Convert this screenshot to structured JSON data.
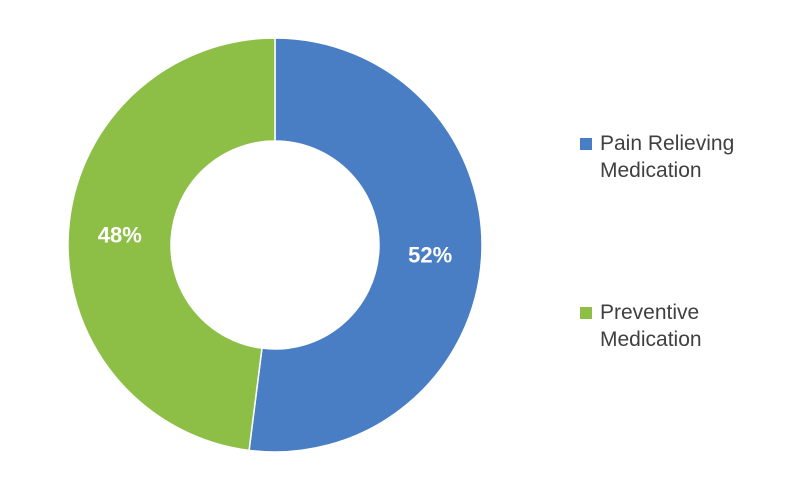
{
  "chart_data": {
    "type": "pie",
    "donut": true,
    "categories": [
      "Pain Relieving Medication",
      "Preventive Medication"
    ],
    "values": [
      52,
      48
    ],
    "labels": [
      "52%",
      "48%"
    ],
    "colors": [
      "#4a7ec4",
      "#8dbf47"
    ],
    "legend_position": "right",
    "title": "",
    "series": [
      {
        "name": "Pain Relieving Medication",
        "value": 52,
        "label": "52%",
        "color": "#4a7ec4"
      },
      {
        "name": "Preventive Medication",
        "value": 48,
        "label": "48%",
        "color": "#8dbf47"
      }
    ]
  }
}
